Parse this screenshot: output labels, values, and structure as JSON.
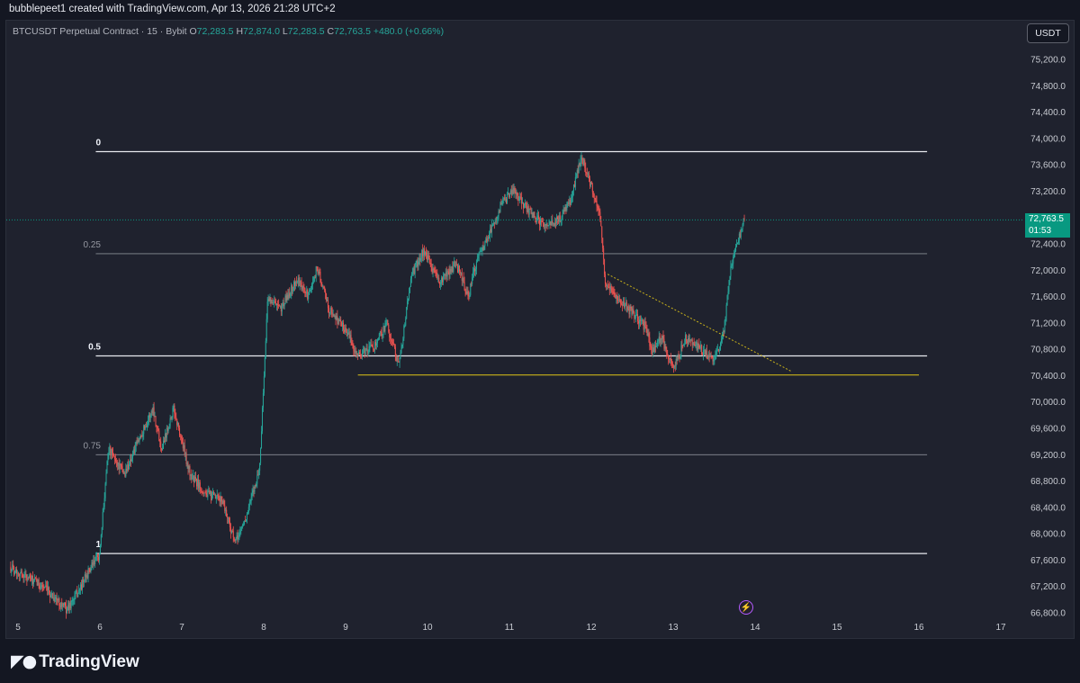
{
  "header": {
    "attribution": "bubblepeet1 created with TradingView.com, Apr 13, 2026 21:28 UTC+2"
  },
  "legend": {
    "symbol": "BTCUSDT Perpetual Contract · 15 · Bybit",
    "open_key": "O",
    "open": "72,283.5",
    "high_key": "H",
    "high": "72,874.0",
    "low_key": "L",
    "low": "72,283.5",
    "close_key": "C",
    "close": "72,763.5",
    "change": "+480.0 (+0.66%)"
  },
  "currency_button": "USDT",
  "price_tag": {
    "price": "72,763.5",
    "countdown": "01:53"
  },
  "logo": {
    "text": "TradingView"
  },
  "colors": {
    "up": "#26a69a",
    "down": "#ef5350",
    "bg": "#1f222e",
    "fib": "#ffffff",
    "trend": "#c9b21a",
    "accent": "#089981"
  },
  "icons": {
    "alert": "lightning-bolt-icon"
  },
  "chart_data": {
    "type": "candlestick",
    "timeframe": "15",
    "y_axis": {
      "side": "right",
      "range": [
        66650,
        75450
      ],
      "ticks": [
        66800,
        67200,
        67600,
        68000,
        68400,
        68800,
        69200,
        69600,
        70000,
        70400,
        70800,
        71200,
        71600,
        72000,
        72400,
        72800,
        73200,
        73600,
        74000,
        74400,
        74800,
        75200
      ],
      "tick_labels": [
        "66,800.0",
        "67,200.0",
        "67,600.0",
        "68,000.0",
        "68,400.0",
        "68,800.0",
        "69,200.0",
        "69,600.0",
        "70,000.0",
        "70,400.0",
        "70,800.0",
        "71,200.0",
        "71,600.0",
        "72,000.0",
        "72,400.0",
        "72,800.0",
        "73,200.0",
        "73,600.0",
        "74,000.0",
        "74,400.0",
        "74,800.0",
        "75,200.0"
      ]
    },
    "x_axis": {
      "unit": "day (April)",
      "range": [
        4.9,
        17.2
      ],
      "ticks": [
        5,
        6,
        7,
        8,
        9,
        10,
        11,
        12,
        13,
        14,
        15,
        16,
        17
      ],
      "tick_labels": [
        "5",
        "6",
        "7",
        "8",
        "9",
        "10",
        "11",
        "12",
        "13",
        "14",
        "15",
        "16",
        "17"
      ]
    },
    "last_price": 72763.5,
    "price_path": [
      [
        4.9,
        67500
      ],
      [
        5.3,
        67200
      ],
      [
        5.6,
        66850
      ],
      [
        5.75,
        67150
      ],
      [
        5.85,
        67400
      ],
      [
        6.0,
        67700
      ],
      [
        6.1,
        69300
      ],
      [
        6.3,
        68900
      ],
      [
        6.5,
        69500
      ],
      [
        6.65,
        69900
      ],
      [
        6.75,
        69300
      ],
      [
        6.9,
        69900
      ],
      [
        7.1,
        68900
      ],
      [
        7.3,
        68600
      ],
      [
        7.5,
        68500
      ],
      [
        7.65,
        67850
      ],
      [
        7.8,
        68300
      ],
      [
        7.95,
        69000
      ],
      [
        8.05,
        71600
      ],
      [
        8.2,
        71400
      ],
      [
        8.4,
        71850
      ],
      [
        8.55,
        71600
      ],
      [
        8.65,
        72050
      ],
      [
        8.8,
        71400
      ],
      [
        9.0,
        71100
      ],
      [
        9.15,
        70700
      ],
      [
        9.35,
        70850
      ],
      [
        9.5,
        71200
      ],
      [
        9.65,
        70550
      ],
      [
        9.8,
        71900
      ],
      [
        9.95,
        72300
      ],
      [
        10.15,
        71800
      ],
      [
        10.35,
        72100
      ],
      [
        10.5,
        71600
      ],
      [
        10.6,
        72150
      ],
      [
        10.75,
        72550
      ],
      [
        10.9,
        73000
      ],
      [
        11.05,
        73200
      ],
      [
        11.2,
        72950
      ],
      [
        11.4,
        72700
      ],
      [
        11.6,
        72750
      ],
      [
        11.75,
        73050
      ],
      [
        11.88,
        73750
      ],
      [
        11.95,
        73450
      ],
      [
        12.1,
        72900
      ],
      [
        12.17,
        71800
      ],
      [
        12.35,
        71550
      ],
      [
        12.5,
        71350
      ],
      [
        12.65,
        71150
      ],
      [
        12.75,
        70750
      ],
      [
        12.85,
        71000
      ],
      [
        13.0,
        70500
      ],
      [
        13.15,
        70950
      ],
      [
        13.3,
        70850
      ],
      [
        13.45,
        70650
      ],
      [
        13.55,
        70750
      ],
      [
        13.62,
        71100
      ],
      [
        13.7,
        72000
      ],
      [
        13.8,
        72500
      ],
      [
        13.87,
        72763
      ]
    ],
    "fibonacci_levels": [
      {
        "label": "0",
        "price": 73800
      },
      {
        "label": "0.25",
        "price": 72250
      },
      {
        "label": "0.5",
        "price": 70700
      },
      {
        "label": "0.75",
        "price": 69200
      },
      {
        "label": "1",
        "price": 67700
      }
    ],
    "fib_x_range": [
      5.95,
      16.1
    ],
    "support_line": {
      "price": 70410,
      "x_range": [
        9.15,
        16.0
      ]
    },
    "trend_line": {
      "from": [
        12.2,
        71940
      ],
      "to": [
        14.45,
        70460
      ]
    },
    "grid": false
  }
}
